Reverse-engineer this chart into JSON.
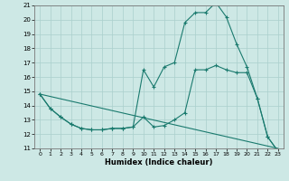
{
  "xlabel": "Humidex (Indice chaleur)",
  "bg_color": "#cde8e5",
  "grid_color": "#aacfcc",
  "line_color": "#1a7a6e",
  "xlim": [
    -0.5,
    23.5
  ],
  "ylim": [
    11,
    21
  ],
  "xticks": [
    0,
    1,
    2,
    3,
    4,
    5,
    6,
    7,
    8,
    9,
    10,
    11,
    12,
    13,
    14,
    15,
    16,
    17,
    18,
    19,
    20,
    21,
    22,
    23
  ],
  "yticks": [
    11,
    12,
    13,
    14,
    15,
    16,
    17,
    18,
    19,
    20,
    21
  ],
  "series1_x": [
    0,
    1,
    2,
    3,
    4,
    5,
    6,
    7,
    8,
    9,
    10,
    11,
    12,
    13,
    14,
    15,
    16,
    17,
    18,
    19,
    20,
    21,
    22,
    23
  ],
  "series1_y": [
    14.8,
    13.8,
    13.2,
    12.7,
    12.4,
    12.3,
    12.3,
    12.4,
    12.4,
    12.5,
    13.2,
    12.5,
    12.6,
    13.0,
    13.5,
    16.5,
    16.5,
    16.8,
    16.5,
    16.3,
    16.3,
    14.5,
    11.8,
    10.8
  ],
  "series2_x": [
    0,
    1,
    2,
    3,
    4,
    5,
    6,
    7,
    8,
    9,
    10,
    11,
    12,
    13,
    14,
    15,
    16,
    17,
    18,
    19,
    20,
    21,
    22,
    23
  ],
  "series2_y": [
    14.8,
    13.8,
    13.2,
    12.7,
    12.4,
    12.3,
    12.3,
    12.4,
    12.4,
    12.5,
    16.5,
    15.3,
    16.7,
    17.0,
    19.8,
    20.5,
    20.5,
    21.2,
    20.2,
    18.3,
    16.7,
    14.5,
    11.8,
    10.8
  ],
  "series3_x": [
    0,
    23
  ],
  "series3_y": [
    14.8,
    11.0
  ],
  "series1_markers": true,
  "series2_markers": true,
  "series3_markers": false
}
